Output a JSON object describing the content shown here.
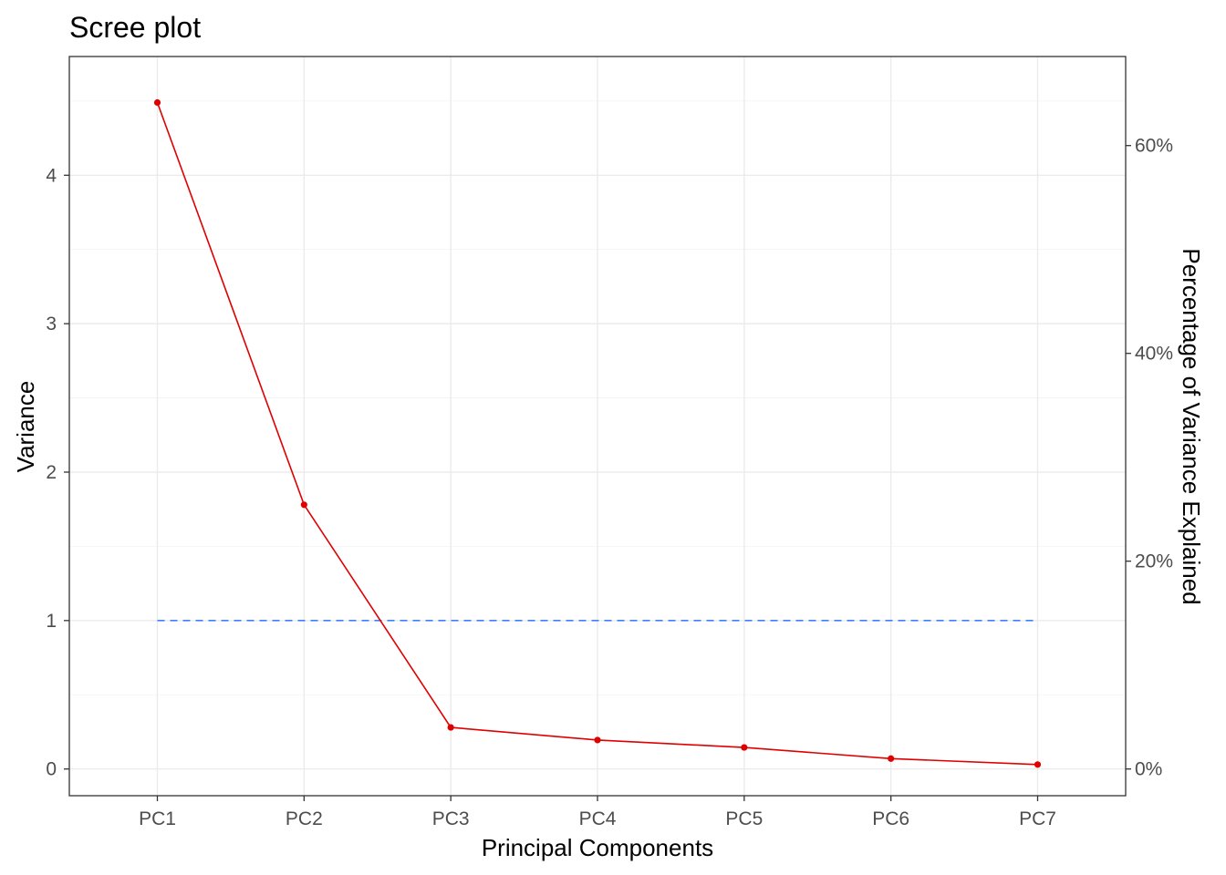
{
  "chart_data": {
    "type": "line",
    "title": "Scree plot",
    "xlabel": "Principal Components",
    "ylabel": "Variance",
    "ylabel_right": "Percentage of Variance Explained",
    "categories": [
      "PC1",
      "PC2",
      "PC3",
      "PC4",
      "PC5",
      "PC6",
      "PC7"
    ],
    "series": [
      {
        "values": [
          4.49,
          1.78,
          0.28,
          0.195,
          0.145,
          0.07,
          0.03
        ],
        "color": "#e00000"
      }
    ],
    "reference_line": {
      "y": 1,
      "style": "dashed",
      "color": "#3d7fff"
    },
    "ylim": [
      -0.18,
      4.8
    ],
    "yticks": [
      0,
      1,
      2,
      3,
      4
    ],
    "ytick_labels": [
      "0",
      "1",
      "2",
      "3",
      "4"
    ],
    "yticks_right": [
      0,
      0.2,
      0.4,
      0.6
    ],
    "ytick_labels_right": [
      "0%",
      "20%",
      "40%",
      "60%"
    ],
    "right_axis_total": 7,
    "grid": true
  }
}
